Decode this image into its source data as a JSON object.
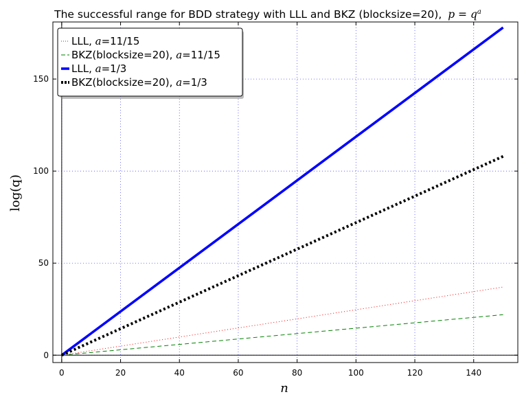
{
  "chart_data": {
    "type": "line",
    "title": "The successful range for BDD strategy with LLL and BKZ (blocksize=20),",
    "title_math": "p = q",
    "title_math_sup": "a",
    "xlabel": "n",
    "ylabel": "log(q)",
    "xlim": [
      -3,
      155
    ],
    "ylim": [
      -4,
      181
    ],
    "xticks": [
      0,
      20,
      40,
      60,
      80,
      100,
      120,
      140
    ],
    "yticks": [
      0,
      50,
      100,
      150
    ],
    "grid": true,
    "legend_position": "top-left",
    "series": [
      {
        "name": "LLL, a=11/15",
        "label_prefix": "LLL, ",
        "label_math": "a",
        "label_suffix": "=11/15",
        "color": "#ff0000",
        "style": "dotted",
        "x": [
          0,
          150
        ],
        "y": [
          0,
          37
        ]
      },
      {
        "name": "BKZ(blocksize=20), a=11/15",
        "label_prefix": "BKZ(blocksize=20), ",
        "label_math": "a",
        "label_suffix": "=11/15",
        "color": "#008000",
        "style": "dashed",
        "x": [
          0,
          150
        ],
        "y": [
          0,
          22
        ]
      },
      {
        "name": "LLL, a=1/3",
        "label_prefix": "LLL, ",
        "label_math": "a",
        "label_suffix": "=1/3",
        "color": "#0000ff",
        "style": "solid-thick",
        "x": [
          0,
          150
        ],
        "y": [
          0,
          178
        ]
      },
      {
        "name": "BKZ(blocksize=20), a=1/3",
        "label_prefix": "BKZ(blocksize=20), ",
        "label_math": "a",
        "label_suffix": "=1/3",
        "color": "#000000",
        "style": "dotted-thick",
        "x": [
          0,
          150
        ],
        "y": [
          0,
          108
        ]
      }
    ]
  }
}
